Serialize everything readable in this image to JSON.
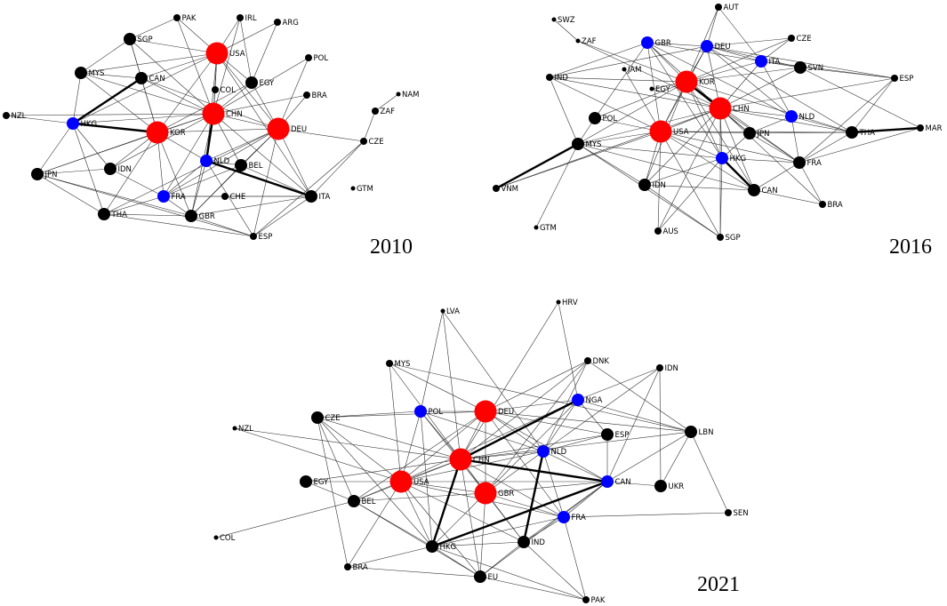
{
  "colors": {
    "red": "#ff0000",
    "blue": "#0000ff",
    "black": "#000000"
  },
  "networks": [
    {
      "year": "2010",
      "nodes": [
        {
          "id": "PAK",
          "color": "black",
          "size": "s"
        },
        {
          "id": "IRL",
          "color": "black",
          "size": "s"
        },
        {
          "id": "ARG",
          "color": "black",
          "size": "s"
        },
        {
          "id": "SGP",
          "color": "black",
          "size": "m"
        },
        {
          "id": "USA",
          "color": "red",
          "size": "l"
        },
        {
          "id": "POL",
          "color": "black",
          "size": "s"
        },
        {
          "id": "MYS",
          "color": "black",
          "size": "m"
        },
        {
          "id": "CAN",
          "color": "black",
          "size": "m"
        },
        {
          "id": "EGY",
          "color": "black",
          "size": "m"
        },
        {
          "id": "COL",
          "color": "black",
          "size": "s"
        },
        {
          "id": "BRA",
          "color": "black",
          "size": "s"
        },
        {
          "id": "NAM",
          "color": "black",
          "size": "xs"
        },
        {
          "id": "NZL",
          "color": "black",
          "size": "s"
        },
        {
          "id": "HKG",
          "color": "blue",
          "size": "m"
        },
        {
          "id": "CHN",
          "color": "red",
          "size": "l"
        },
        {
          "id": "KOR",
          "color": "red",
          "size": "l"
        },
        {
          "id": "DEU",
          "color": "red",
          "size": "l"
        },
        {
          "id": "ZAF",
          "color": "black",
          "size": "s"
        },
        {
          "id": "CZE",
          "color": "black",
          "size": "s"
        },
        {
          "id": "IDN",
          "color": "black",
          "size": "m"
        },
        {
          "id": "NLD",
          "color": "blue",
          "size": "m"
        },
        {
          "id": "BEL",
          "color": "black",
          "size": "m"
        },
        {
          "id": "JPN",
          "color": "black",
          "size": "m"
        },
        {
          "id": "GTM",
          "color": "black",
          "size": "xs"
        },
        {
          "id": "FRA",
          "color": "blue",
          "size": "m"
        },
        {
          "id": "CHE",
          "color": "black",
          "size": "s"
        },
        {
          "id": "ITA",
          "color": "black",
          "size": "m"
        },
        {
          "id": "THA",
          "color": "black",
          "size": "m"
        },
        {
          "id": "GBR",
          "color": "black",
          "size": "m"
        },
        {
          "id": "ESP",
          "color": "black",
          "size": "s"
        }
      ]
    },
    {
      "year": "2016",
      "nodes": [
        {
          "id": "SWZ",
          "color": "black",
          "size": "xs"
        },
        {
          "id": "AUT",
          "color": "black",
          "size": "s"
        },
        {
          "id": "ZAF",
          "color": "black",
          "size": "xs"
        },
        {
          "id": "GBR",
          "color": "blue",
          "size": "m"
        },
        {
          "id": "DEU",
          "color": "blue",
          "size": "m"
        },
        {
          "id": "CZE",
          "color": "black",
          "size": "s"
        },
        {
          "id": "ITA",
          "color": "blue",
          "size": "m"
        },
        {
          "id": "JAM",
          "color": "black",
          "size": "xs"
        },
        {
          "id": "SVN",
          "color": "black",
          "size": "m"
        },
        {
          "id": "KOR",
          "color": "red",
          "size": "l"
        },
        {
          "id": "IND",
          "color": "black",
          "size": "s"
        },
        {
          "id": "EGY",
          "color": "black",
          "size": "xs"
        },
        {
          "id": "ESP",
          "color": "black",
          "size": "s"
        },
        {
          "id": "CHN",
          "color": "red",
          "size": "l"
        },
        {
          "id": "NLD",
          "color": "blue",
          "size": "m"
        },
        {
          "id": "POL",
          "color": "black",
          "size": "m"
        },
        {
          "id": "USA",
          "color": "red",
          "size": "l"
        },
        {
          "id": "JPN",
          "color": "black",
          "size": "m"
        },
        {
          "id": "THA",
          "color": "black",
          "size": "m"
        },
        {
          "id": "MAR",
          "color": "black",
          "size": "s"
        },
        {
          "id": "MYS",
          "color": "black",
          "size": "m"
        },
        {
          "id": "HKG",
          "color": "blue",
          "size": "m"
        },
        {
          "id": "FRA",
          "color": "black",
          "size": "m"
        },
        {
          "id": "VNM",
          "color": "black",
          "size": "s"
        },
        {
          "id": "IDN",
          "color": "black",
          "size": "m"
        },
        {
          "id": "CAN",
          "color": "black",
          "size": "m"
        },
        {
          "id": "BRA",
          "color": "black",
          "size": "s"
        },
        {
          "id": "GTM",
          "color": "black",
          "size": "xs"
        },
        {
          "id": "AUS",
          "color": "black",
          "size": "s"
        },
        {
          "id": "SGP",
          "color": "black",
          "size": "s"
        }
      ]
    },
    {
      "year": "2021",
      "nodes": [
        {
          "id": "HRV",
          "color": "black",
          "size": "xs"
        },
        {
          "id": "LVA",
          "color": "black",
          "size": "xs"
        },
        {
          "id": "MYS",
          "color": "black",
          "size": "s"
        },
        {
          "id": "DNK",
          "color": "black",
          "size": "s"
        },
        {
          "id": "IDN",
          "color": "black",
          "size": "s"
        },
        {
          "id": "NGA",
          "color": "blue",
          "size": "m"
        },
        {
          "id": "POL",
          "color": "blue",
          "size": "m"
        },
        {
          "id": "DEU",
          "color": "red",
          "size": "l"
        },
        {
          "id": "CZE",
          "color": "black",
          "size": "m"
        },
        {
          "id": "NZL",
          "color": "black",
          "size": "xs"
        },
        {
          "id": "LBN",
          "color": "black",
          "size": "m"
        },
        {
          "id": "ESP",
          "color": "black",
          "size": "m"
        },
        {
          "id": "NLD",
          "color": "blue",
          "size": "m"
        },
        {
          "id": "CHN",
          "color": "red",
          "size": "l"
        },
        {
          "id": "EGY",
          "color": "black",
          "size": "m"
        },
        {
          "id": "USA",
          "color": "red",
          "size": "l"
        },
        {
          "id": "CAN",
          "color": "blue",
          "size": "m"
        },
        {
          "id": "UKR",
          "color": "black",
          "size": "m"
        },
        {
          "id": "GBR",
          "color": "red",
          "size": "l"
        },
        {
          "id": "BEL",
          "color": "black",
          "size": "m"
        },
        {
          "id": "SEN",
          "color": "black",
          "size": "s"
        },
        {
          "id": "FRA",
          "color": "blue",
          "size": "m"
        },
        {
          "id": "COL",
          "color": "black",
          "size": "xs"
        },
        {
          "id": "HKG",
          "color": "black",
          "size": "m"
        },
        {
          "id": "IND",
          "color": "black",
          "size": "m"
        },
        {
          "id": "BRA",
          "color": "black",
          "size": "s"
        },
        {
          "id": "EU",
          "color": "black",
          "size": "m"
        },
        {
          "id": "PAK",
          "color": "black",
          "size": "s"
        }
      ]
    }
  ]
}
